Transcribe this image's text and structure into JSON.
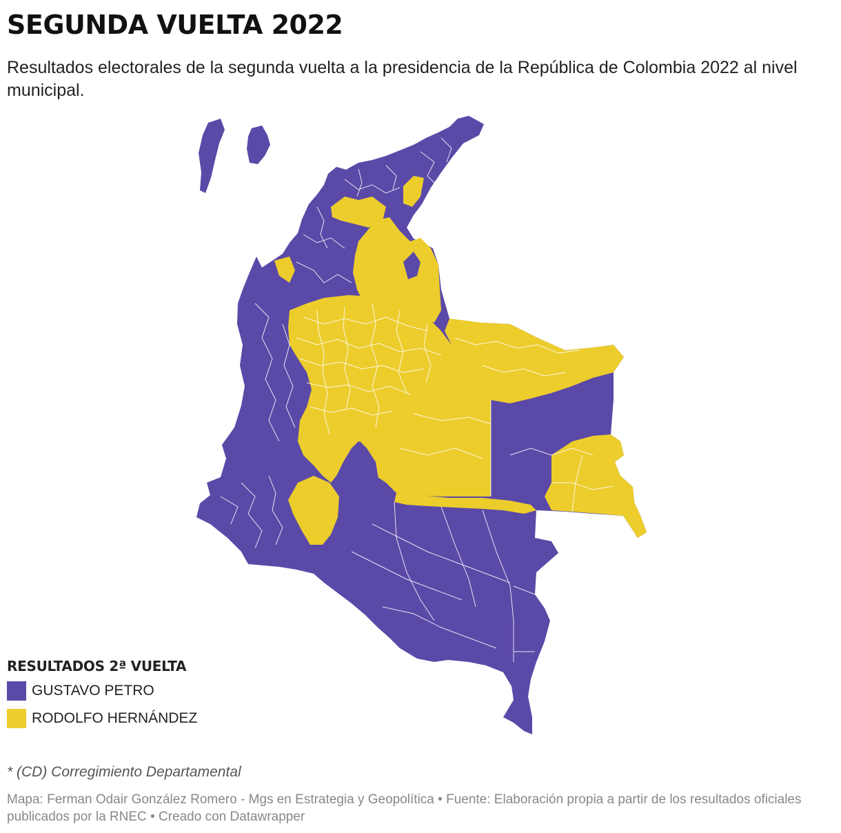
{
  "header": {
    "title": "SEGUNDA VUELTA 2022",
    "subtitle": "Resultados electorales de la segunda vuelta a la presidencia de la República de Colombia 2022 al nivel municipal."
  },
  "legend": {
    "title": "RESULTADOS 2ª VUELTA",
    "items": [
      {
        "label": "GUSTAVO PETRO",
        "color": "#5b49a8"
      },
      {
        "label": "RODOLFO HERNÁNDEZ",
        "color": "#eccd2c"
      }
    ]
  },
  "map": {
    "region": "Colombia",
    "level": "municipal",
    "colors": {
      "petro": "#5b49a8",
      "hernandez": "#eccd2c",
      "border": "#ffffff"
    }
  },
  "footer": {
    "note": "* (CD) Corregimiento Departamental",
    "source": "Mapa: Ferman Odair González Romero - Mgs en Estrategia y Geopolítica • Fuente: Elaboración propia a partir de los resultados oficiales publicados por la RNEC • Creado con Datawrapper"
  }
}
